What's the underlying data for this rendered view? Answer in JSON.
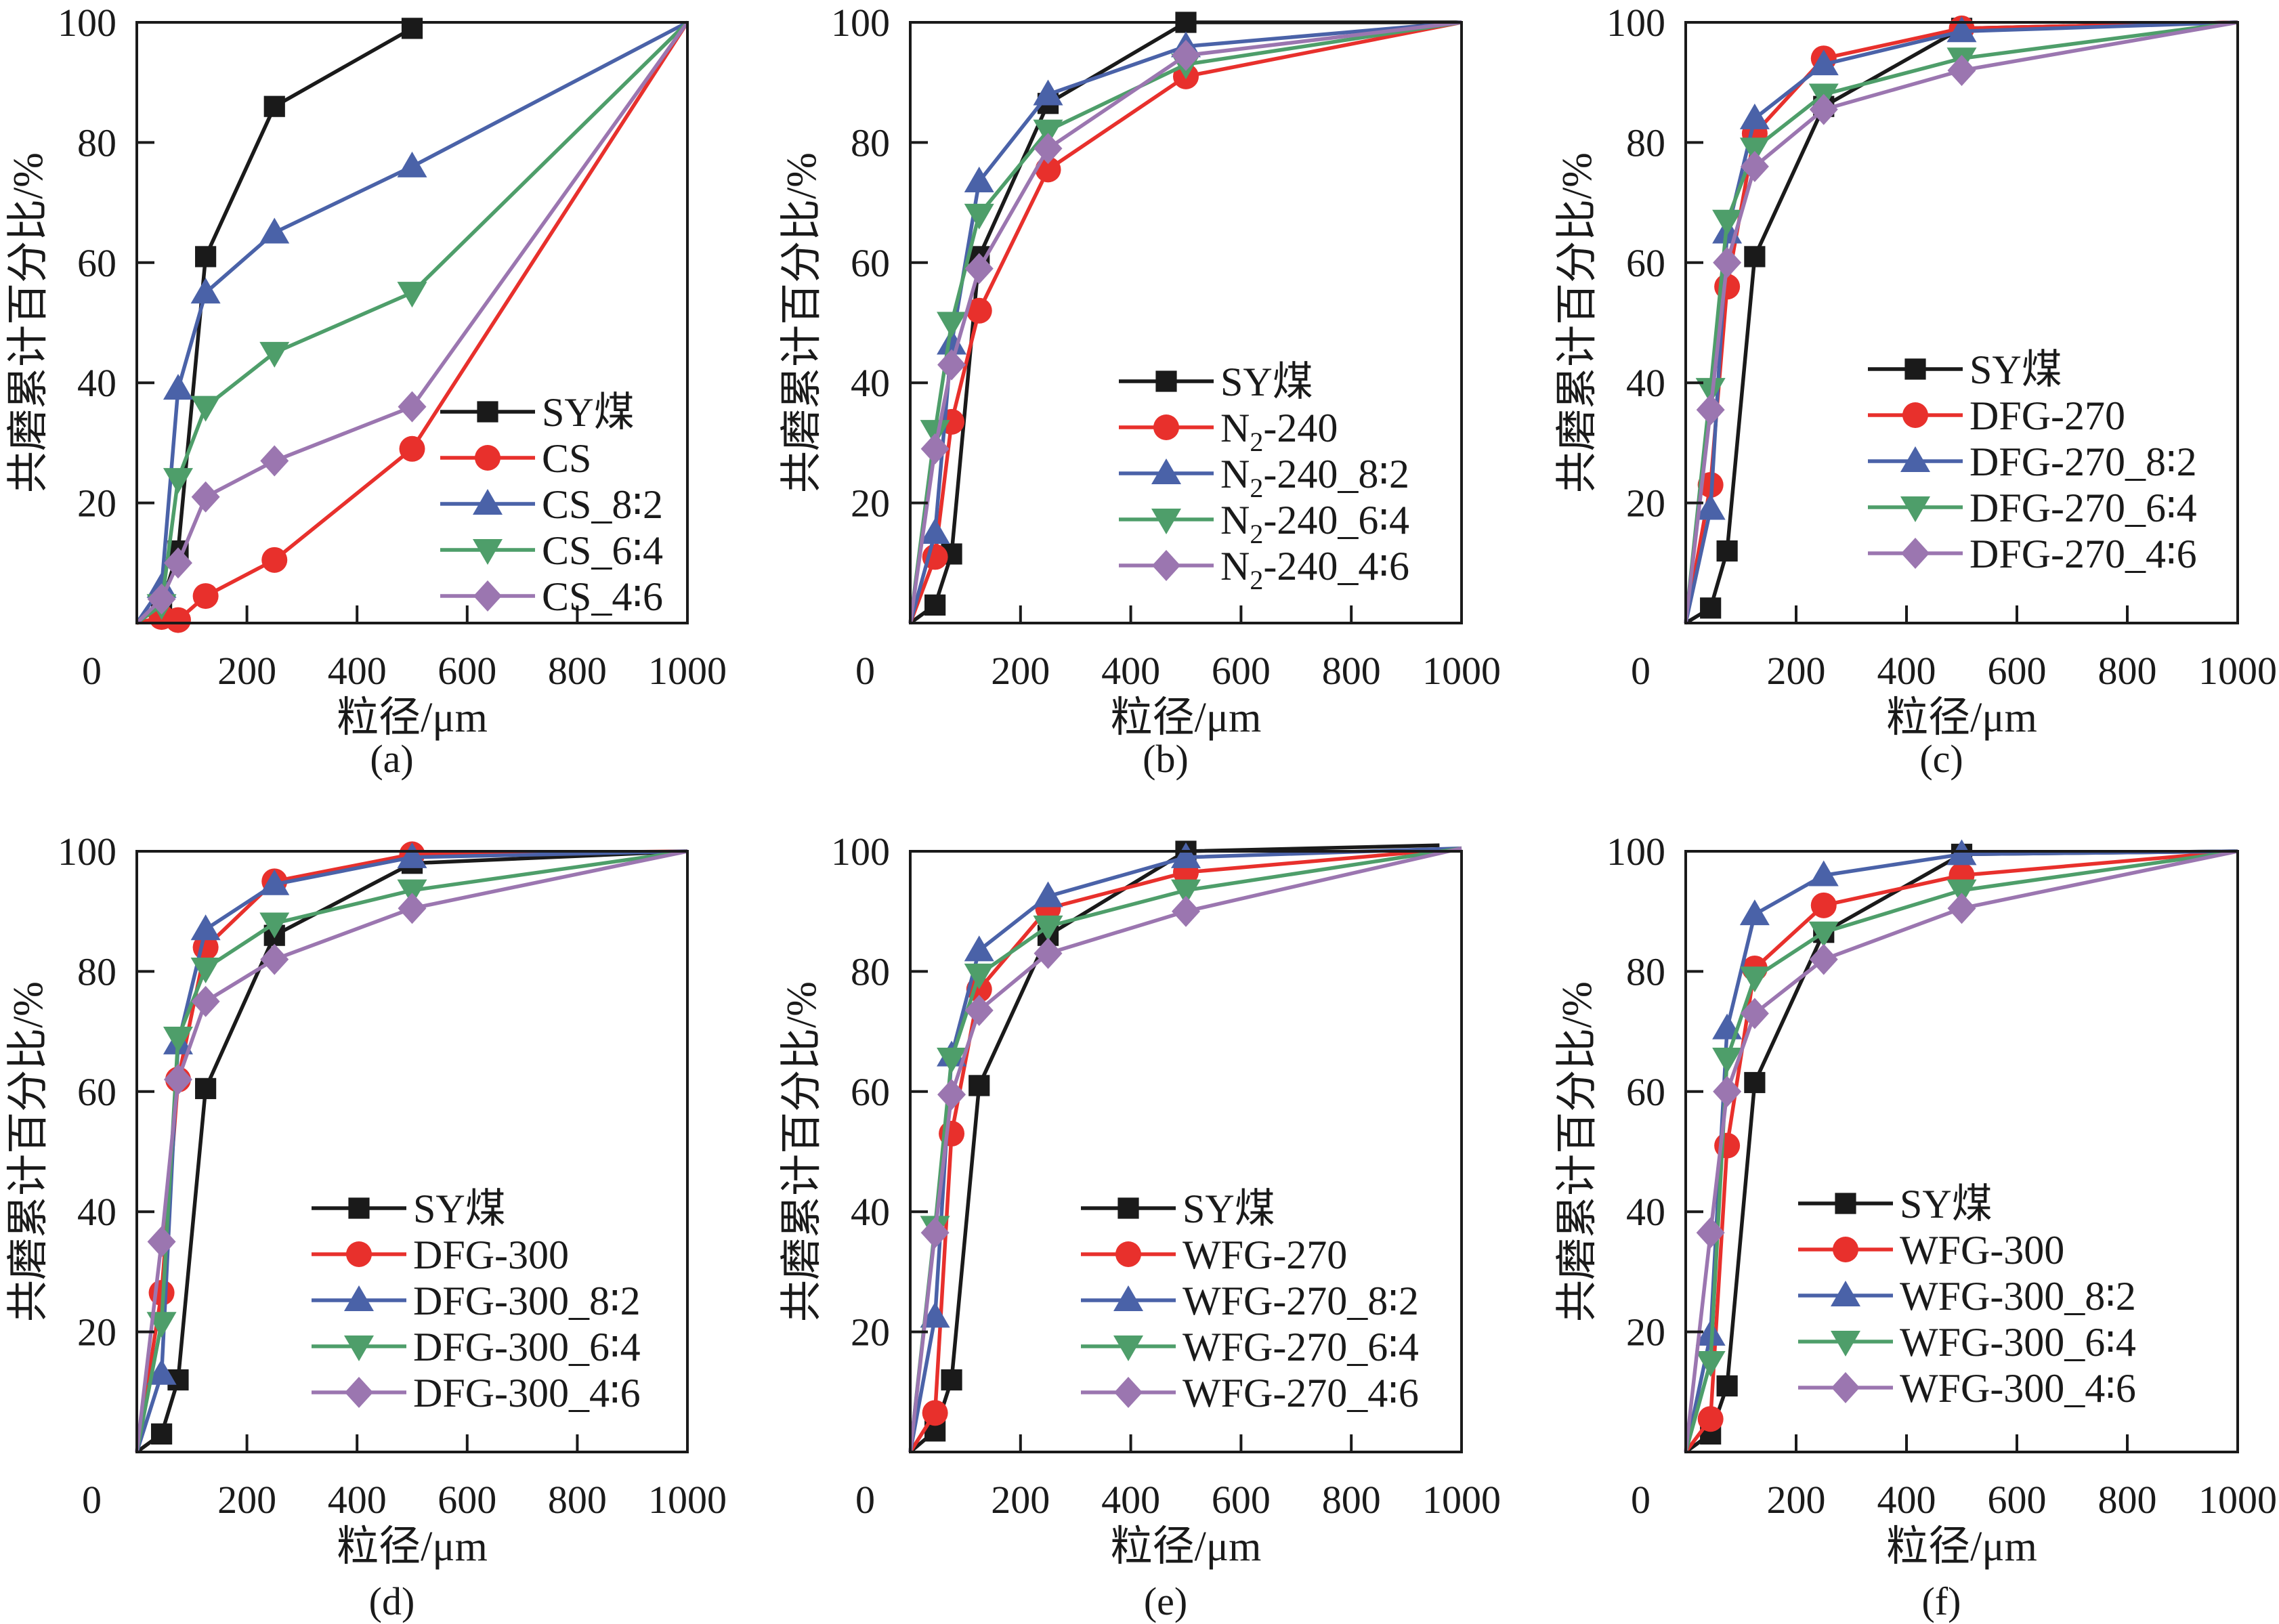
{
  "figure": {
    "y_axis_label": "共磨累计百分比/%",
    "x_axis_label": "粒径/μm"
  },
  "chart_data": [
    {
      "panel": "(a)",
      "type": "line",
      "xlabel": "粒径/μm",
      "ylabel": "共磨累计百分比/%",
      "xlim": [
        0,
        1000
      ],
      "ylim": [
        0,
        100
      ],
      "xticks": [
        0,
        200,
        400,
        600,
        800,
        1000
      ],
      "yticks": [
        20,
        40,
        60,
        80,
        100
      ],
      "y_zero_label": "0",
      "grid": false,
      "legend_position": "lower-right",
      "series": [
        {
          "name": "SY煤",
          "color": "#1a1a1a",
          "marker": "square",
          "x": [
            0,
            45,
            75,
            125,
            250,
            500
          ],
          "y": [
            0,
            3,
            12,
            61,
            86,
            99
          ]
        },
        {
          "name": "CS",
          "color": "#e8302c",
          "marker": "circle",
          "x": [
            0,
            45,
            75,
            125,
            250,
            500,
            1000
          ],
          "y": [
            0,
            1,
            0.5,
            4.5,
            10.5,
            29,
            100
          ]
        },
        {
          "name": "CS_8∶2",
          "color": "#4a62a8",
          "marker": "triangle-up",
          "x": [
            0,
            45,
            75,
            125,
            250,
            500,
            1000
          ],
          "y": [
            0,
            6,
            39,
            55,
            65,
            76,
            100
          ]
        },
        {
          "name": "CS_6∶4",
          "color": "#4e9e6a",
          "marker": "triangle-down",
          "x": [
            0,
            45,
            75,
            125,
            250,
            500,
            1000
          ],
          "y": [
            0,
            3,
            24,
            36,
            45,
            55,
            100
          ]
        },
        {
          "name": "CS_4∶6",
          "color": "#9b76b0",
          "marker": "diamond",
          "x": [
            0,
            45,
            75,
            125,
            250,
            500,
            1000
          ],
          "y": [
            0,
            4,
            10,
            21,
            27,
            36,
            100
          ]
        }
      ]
    },
    {
      "panel": "(b)",
      "type": "line",
      "xlabel": "粒径/μm",
      "ylabel": "共磨累计百分比/%",
      "xlim": [
        0,
        1000
      ],
      "ylim": [
        0,
        100
      ],
      "xticks": [
        0,
        200,
        400,
        600,
        800,
        1000
      ],
      "yticks": [
        20,
        40,
        60,
        80,
        100
      ],
      "y_zero_label": "0",
      "grid": false,
      "legend_position": "lower-right",
      "series": [
        {
          "name": "SY煤",
          "color": "#1a1a1a",
          "marker": "square",
          "x": [
            0,
            45,
            75,
            125,
            250,
            500,
            1000
          ],
          "y": [
            0,
            3,
            11.5,
            61,
            86.5,
            100,
            100
          ]
        },
        {
          "name": "N2-240",
          "label_main": "N",
          "label_sub": "2",
          "label_rest": "-240",
          "color": "#e8302c",
          "marker": "circle",
          "x": [
            0,
            45,
            75,
            125,
            250,
            500,
            1000
          ],
          "y": [
            0,
            11,
            33.5,
            52,
            75.5,
            91,
            100
          ]
        },
        {
          "name": "N2-240_8∶2",
          "label_main": "N",
          "label_sub": "2",
          "label_rest": "-240_8∶2",
          "color": "#4a62a8",
          "marker": "triangle-up",
          "x": [
            0,
            45,
            75,
            125,
            250,
            500,
            1000
          ],
          "y": [
            0,
            15,
            46.5,
            73.5,
            88,
            96,
            100
          ]
        },
        {
          "name": "N2-240_6∶4",
          "label_main": "N",
          "label_sub": "2",
          "label_rest": "-240_6∶4",
          "color": "#4e9e6a",
          "marker": "triangle-down",
          "x": [
            0,
            45,
            75,
            125,
            250,
            500,
            1000
          ],
          "y": [
            0,
            32,
            50,
            68,
            82,
            93,
            100
          ]
        },
        {
          "name": "N2-240_4∶6",
          "label_main": "N",
          "label_sub": "2",
          "label_rest": "-240_4∶6",
          "color": "#9b76b0",
          "marker": "diamond",
          "x": [
            0,
            45,
            75,
            125,
            250,
            500,
            1000
          ],
          "y": [
            0,
            29,
            43,
            59,
            79,
            94.5,
            100
          ]
        }
      ]
    },
    {
      "panel": "(c)",
      "type": "line",
      "xlabel": "粒径/μm",
      "ylabel": "共磨累计百分比/%",
      "xlim": [
        0,
        1000
      ],
      "ylim": [
        0,
        100
      ],
      "xticks": [
        0,
        200,
        400,
        600,
        800,
        1000
      ],
      "yticks": [
        20,
        40,
        60,
        80,
        100
      ],
      "y_zero_label": "0",
      "grid": false,
      "legend_position": "lower-right",
      "series": [
        {
          "name": "SY煤",
          "color": "#1a1a1a",
          "marker": "square",
          "x": [
            0,
            45,
            75,
            125,
            250,
            500,
            1000
          ],
          "y": [
            0,
            2.5,
            12,
            61,
            86,
            99,
            100
          ]
        },
        {
          "name": "DFG-270",
          "color": "#e8302c",
          "marker": "circle",
          "x": [
            0,
            45,
            75,
            125,
            250,
            500,
            1000
          ],
          "y": [
            0,
            23,
            56,
            81.5,
            94,
            99,
            100
          ]
        },
        {
          "name": "DFG-270_8∶2",
          "color": "#4a62a8",
          "marker": "triangle-up",
          "x": [
            0,
            45,
            75,
            125,
            250,
            500,
            1000
          ],
          "y": [
            0,
            19,
            65,
            84,
            93,
            98.5,
            100
          ]
        },
        {
          "name": "DFG-270_6∶4",
          "color": "#4e9e6a",
          "marker": "triangle-down",
          "x": [
            0,
            45,
            75,
            125,
            250,
            500,
            1000
          ],
          "y": [
            0,
            39,
            67,
            79,
            88,
            94,
            100
          ]
        },
        {
          "name": "DFG-270_4∶6",
          "color": "#9b76b0",
          "marker": "diamond",
          "x": [
            0,
            45,
            75,
            125,
            250,
            500,
            1000
          ],
          "y": [
            0,
            35.5,
            60,
            76,
            85.5,
            92,
            100
          ]
        }
      ]
    },
    {
      "panel": "(d)",
      "type": "line",
      "xlabel": "粒径/μm",
      "ylabel": "共磨累计百分比/%",
      "xlim": [
        0,
        1000
      ],
      "ylim": [
        0,
        100
      ],
      "xticks": [
        0,
        200,
        400,
        600,
        800,
        1000
      ],
      "yticks": [
        20,
        40,
        60,
        80,
        100
      ],
      "y_zero_label": "0",
      "grid": false,
      "legend_position": "lower-right",
      "series": [
        {
          "name": "SY煤",
          "color": "#1a1a1a",
          "marker": "square",
          "x": [
            0,
            45,
            75,
            125,
            250,
            500,
            1000
          ],
          "y": [
            0,
            3,
            12,
            60.5,
            86,
            98,
            100
          ]
        },
        {
          "name": "DFG-300",
          "color": "#e8302c",
          "marker": "circle",
          "x": [
            0,
            45,
            75,
            125,
            250,
            500,
            1000
          ],
          "y": [
            0,
            26.5,
            62,
            84,
            95,
            99.5,
            100
          ]
        },
        {
          "name": "DFG-300_8∶2",
          "color": "#4a62a8",
          "marker": "triangle-up",
          "x": [
            0,
            45,
            75,
            125,
            250,
            500,
            1000
          ],
          "y": [
            0,
            13,
            68,
            87,
            94.5,
            99,
            100
          ]
        },
        {
          "name": "DFG-300_6∶4",
          "color": "#4e9e6a",
          "marker": "triangle-down",
          "x": [
            0,
            45,
            75,
            125,
            250,
            500,
            1000
          ],
          "y": [
            0,
            21.5,
            69,
            80.5,
            88,
            93.5,
            100
          ]
        },
        {
          "name": "DFG-300_4∶6",
          "color": "#9b76b0",
          "marker": "diamond",
          "x": [
            0,
            45,
            75,
            125,
            250,
            500,
            1000
          ],
          "y": [
            0,
            35,
            62,
            75,
            82,
            90.5,
            100
          ]
        }
      ]
    },
    {
      "panel": "(e)",
      "type": "line",
      "xlabel": "粒径/μm",
      "ylabel": "共磨累计百分比/%",
      "xlim": [
        0,
        1000
      ],
      "ylim": [
        0,
        100
      ],
      "xticks": [
        0,
        200,
        400,
        600,
        800,
        1000
      ],
      "yticks": [
        20,
        40,
        60,
        80,
        100
      ],
      "y_zero_label": "0",
      "grid": false,
      "legend_position": "lower-right",
      "series": [
        {
          "name": "SY煤",
          "color": "#1a1a1a",
          "marker": "square",
          "x": [
            0,
            45,
            75,
            125,
            250,
            500,
            960
          ],
          "y": [
            0,
            3.5,
            12,
            61,
            86,
            100,
            101
          ]
        },
        {
          "name": "WFG-270",
          "color": "#e8302c",
          "marker": "circle",
          "x": [
            0,
            45,
            75,
            125,
            250,
            500,
            1000
          ],
          "y": [
            0,
            6.5,
            53,
            77,
            90.5,
            96.5,
            100.5
          ]
        },
        {
          "name": "WFG-270_8∶2",
          "color": "#4a62a8",
          "marker": "triangle-up",
          "x": [
            0,
            45,
            75,
            125,
            250,
            500,
            1000
          ],
          "y": [
            0,
            22.5,
            66,
            83.5,
            92.5,
            99,
            100.5
          ]
        },
        {
          "name": "WFG-270_6∶4",
          "color": "#4e9e6a",
          "marker": "triangle-down",
          "x": [
            0,
            45,
            75,
            125,
            250,
            500,
            1000
          ],
          "y": [
            0,
            37.5,
            65.5,
            79.5,
            87.5,
            93.5,
            100.5
          ]
        },
        {
          "name": "WFG-270_4∶6",
          "color": "#9b76b0",
          "marker": "diamond",
          "x": [
            0,
            45,
            75,
            125,
            250,
            500,
            1000
          ],
          "y": [
            0,
            36.5,
            59.5,
            73.5,
            83,
            90,
            100.5
          ]
        }
      ]
    },
    {
      "panel": "(f)",
      "type": "line",
      "xlabel": "粒径/μm",
      "ylabel": "共磨累计百分比/%",
      "xlim": [
        0,
        1000
      ],
      "ylim": [
        0,
        100
      ],
      "xticks": [
        0,
        200,
        400,
        600,
        800,
        1000
      ],
      "yticks": [
        20,
        40,
        60,
        80,
        100
      ],
      "y_zero_label": "0",
      "grid": false,
      "legend_position": "lower-right",
      "series": [
        {
          "name": "SY煤",
          "color": "#1a1a1a",
          "marker": "square",
          "x": [
            0,
            45,
            75,
            125,
            250,
            500,
            1000
          ],
          "y": [
            0,
            3,
            11,
            61.5,
            86.5,
            99.5,
            100
          ]
        },
        {
          "name": "WFG-300",
          "color": "#e8302c",
          "marker": "circle",
          "x": [
            0,
            45,
            75,
            125,
            250,
            500,
            1000
          ],
          "y": [
            0,
            5.5,
            51,
            80.5,
            91,
            96,
            100
          ]
        },
        {
          "name": "WFG-300_8∶2",
          "color": "#4a62a8",
          "marker": "triangle-up",
          "x": [
            0,
            45,
            75,
            125,
            250,
            500,
            1000
          ],
          "y": [
            0,
            19.5,
            70.5,
            89.5,
            96,
            99.5,
            100
          ]
        },
        {
          "name": "WFG-300_6∶4",
          "color": "#4e9e6a",
          "marker": "triangle-down",
          "x": [
            0,
            45,
            75,
            125,
            250,
            500,
            1000
          ],
          "y": [
            0,
            15,
            65.5,
            79,
            86.5,
            93.5,
            100
          ]
        },
        {
          "name": "WFG-300_4∶6",
          "color": "#9b76b0",
          "marker": "diamond",
          "x": [
            0,
            45,
            75,
            125,
            250,
            500,
            1000
          ],
          "y": [
            0,
            36.5,
            60,
            73,
            82,
            90.5,
            100
          ]
        }
      ]
    }
  ]
}
